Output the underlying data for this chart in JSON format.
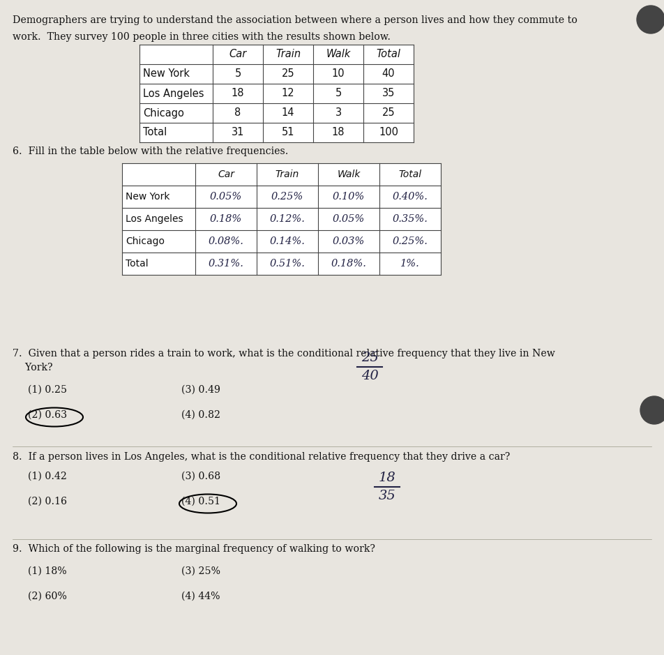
{
  "bg_color": "#c8c4bc",
  "paper_color": "#e8e5df",
  "intro_line1": "Demographers are trying to understand the association between where a person lives and how they commute to",
  "intro_line2": "work.  They survey 100 people in three cities with the results shown below.",
  "table1_headers": [
    "Car",
    "Train",
    "Walk",
    "Total"
  ],
  "table1_rows": [
    [
      "New York",
      "5",
      "25",
      "10",
      "40"
    ],
    [
      "Los Angeles",
      "18",
      "12",
      "5",
      "35"
    ],
    [
      "Chicago",
      "8",
      "14",
      "3",
      "25"
    ],
    [
      "Total",
      "31",
      "51",
      "18",
      "100"
    ]
  ],
  "q6_text": "6.  Fill in the table below with the relative frequencies.",
  "table2_headers": [
    "Car",
    "Train",
    "Walk",
    "Total"
  ],
  "table2_rows": [
    [
      "New York",
      "0.05%",
      "0.25%",
      "0.10%",
      "0.40%."
    ],
    [
      "Los Angeles",
      "0.18%",
      "0.12%.",
      "0.05%",
      "0.35%."
    ],
    [
      "Chicago",
      "0.08%.",
      "0.14%.",
      "0.03%",
      "0.25%."
    ],
    [
      "Total",
      "0.31%.",
      "0.51%.",
      "0.18%.",
      "1%."
    ]
  ],
  "q7_line1": "7.  Given that a person rides a train to work, what is the conditional relative frequency that they live in New",
  "q7_line2": "    York?",
  "q7_frac_num": "25",
  "q7_frac_den": "40",
  "q7_opts": [
    "(1) 0.25",
    "(3) 0.49",
    "(2) 0.63",
    "(4) 0.82"
  ],
  "q7_circled": 2,
  "q8_line1": "8.  If a person lives in Los Angeles, what is the conditional relative frequency that they drive a car?",
  "q8_frac_num": "18",
  "q8_frac_den": "35",
  "q8_opts": [
    "(1) 0.42",
    "(3) 0.68",
    "(2) 0.16",
    "(4) 0.51"
  ],
  "q8_circled": 3,
  "q9_line1": "9.  Which of the following is the marginal frequency of walking to work?",
  "q9_opts": [
    "(1) 18%",
    "(3) 25%",
    "(2) 60%",
    "(4) 44%"
  ],
  "text_color": "#111111",
  "hand_color": "#222244",
  "table_border": "#444444",
  "hole_color": "#444444"
}
